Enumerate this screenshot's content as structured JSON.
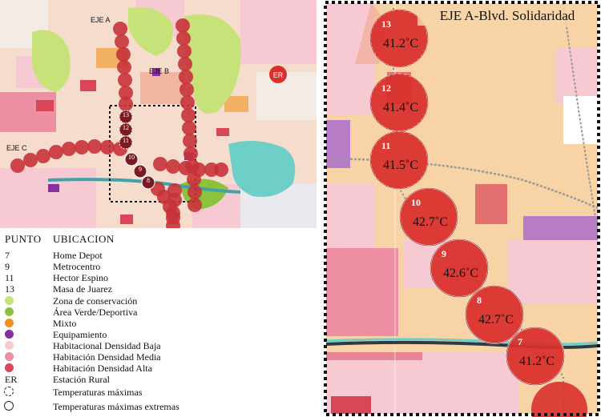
{
  "left_map": {
    "axis_labels": [
      "EJE A",
      "EJE B",
      "EJE C"
    ],
    "rural_station_label": "ER",
    "circle_numbers": [
      "13",
      "12",
      "11",
      "10",
      "9",
      "8"
    ]
  },
  "legend": {
    "col_point": "PUNTO",
    "col_location": "UBICACION",
    "points": [
      {
        "num": "7",
        "name": "Home Depot"
      },
      {
        "num": "9",
        "name": "Metrocentro"
      },
      {
        "num": "11",
        "name": "Hector Espino"
      },
      {
        "num": "13",
        "name": "Masa de Juarez"
      }
    ],
    "land_use": [
      {
        "label": "Zona de conservación",
        "color": "#c8e27a"
      },
      {
        "label": "Área Verde/Deportiva",
        "color": "#8cc23c"
      },
      {
        "label": "Mixto",
        "color": "#f0921e"
      },
      {
        "label": "Equipamiento",
        "color": "#8a2f9e"
      },
      {
        "label": "Habitacional Densidad Baja",
        "color": "#f7c9d2"
      },
      {
        "label": "Habitación Densidad Media",
        "color": "#ee8ea2"
      },
      {
        "label": "Habitación Densidad Alta",
        "color": "#d84658"
      }
    ],
    "rural_station": {
      "abbr": "ER",
      "label": "Estación Rural"
    },
    "max_temp": "Temperaturas máximas",
    "max_temp_extreme": "Temperaturas máximas extremas"
  },
  "detail_map": {
    "title": "EJE A-Blvd. Solidaridad",
    "circles": [
      {
        "num": "13",
        "temp": "41.2˚C",
        "style": "dashed"
      },
      {
        "num": "12",
        "temp": "41.4˚C",
        "style": "dashed"
      },
      {
        "num": "11",
        "temp": "41.5˚C",
        "style": "dashed"
      },
      {
        "num": "10",
        "temp": "42.7˚C",
        "style": "solid"
      },
      {
        "num": "9",
        "temp": "42.6˚C",
        "style": "solid"
      },
      {
        "num": "8",
        "temp": "42.7˚C",
        "style": "solid"
      },
      {
        "num": "7",
        "temp": "41.2˚C",
        "style": "solid"
      }
    ],
    "colors": {
      "circle_fill": "#d9302c",
      "circle_stroke": "#7a1010",
      "frame": "#111111"
    }
  }
}
